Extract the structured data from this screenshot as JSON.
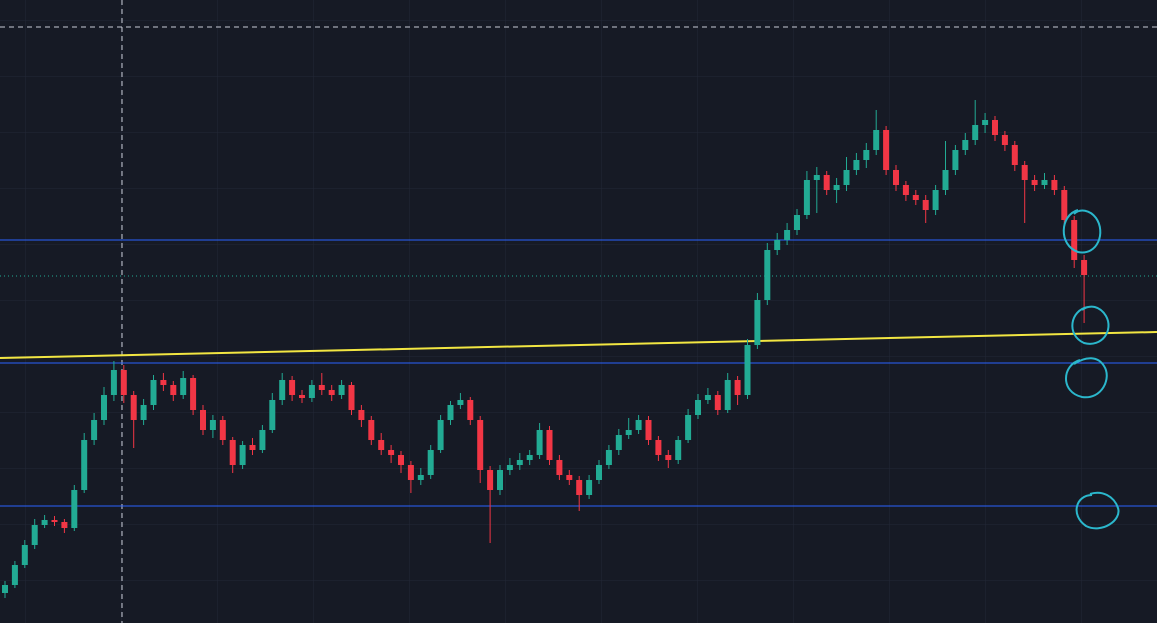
{
  "chart_data": {
    "type": "candlestick",
    "up_color": "#22ab94",
    "down_color": "#f23645",
    "ylim": [
      0,
      623
    ],
    "open": [
      30,
      38,
      58,
      78,
      98,
      103,
      101,
      95,
      133,
      183,
      203,
      228,
      253,
      228,
      203,
      218,
      243,
      238,
      228,
      245,
      213,
      193,
      203,
      183,
      158,
      178,
      173,
      193,
      223,
      243,
      228,
      225,
      238,
      233,
      228,
      238,
      213,
      203,
      183,
      173,
      168,
      158,
      143,
      148,
      173,
      203,
      218,
      223,
      203,
      153,
      133,
      153,
      158,
      163,
      168,
      193,
      163,
      148,
      143,
      128,
      143,
      158,
      173,
      188,
      193,
      203,
      183,
      168,
      163,
      183,
      208,
      223,
      228,
      213,
      243,
      228,
      278,
      323,
      373,
      383,
      393,
      408,
      443,
      448,
      433,
      438,
      453,
      463,
      473,
      493,
      453,
      438,
      428,
      423,
      413,
      433,
      453,
      473,
      483,
      498,
      503,
      488,
      478,
      458,
      443,
      438,
      443,
      433,
      403,
      363
    ],
    "high": [
      42,
      62,
      83,
      104,
      108,
      107,
      104,
      138,
      190,
      210,
      236,
      262,
      258,
      232,
      224,
      248,
      250,
      242,
      252,
      248,
      218,
      208,
      207,
      186,
      182,
      185,
      198,
      230,
      250,
      247,
      233,
      243,
      250,
      238,
      243,
      241,
      218,
      207,
      190,
      178,
      172,
      162,
      155,
      178,
      208,
      222,
      230,
      226,
      207,
      157,
      158,
      165,
      170,
      173,
      200,
      197,
      168,
      153,
      147,
      148,
      163,
      178,
      194,
      205,
      208,
      207,
      187,
      173,
      187,
      214,
      229,
      235,
      232,
      250,
      247,
      284,
      330,
      380,
      390,
      400,
      414,
      452,
      456,
      452,
      445,
      466,
      470,
      480,
      513,
      497,
      458,
      442,
      433,
      428,
      438,
      482,
      478,
      490,
      523,
      510,
      507,
      492,
      482,
      462,
      448,
      450,
      448,
      437,
      407,
      368
    ],
    "low": [
      25,
      35,
      55,
      74,
      95,
      97,
      90,
      92,
      130,
      178,
      198,
      222,
      220,
      175,
      198,
      213,
      232,
      222,
      224,
      208,
      188,
      185,
      178,
      150,
      154,
      168,
      170,
      190,
      218,
      222,
      220,
      221,
      228,
      222,
      224,
      208,
      196,
      178,
      168,
      160,
      150,
      130,
      138,
      144,
      170,
      198,
      214,
      198,
      140,
      80,
      128,
      148,
      153,
      158,
      164,
      158,
      143,
      138,
      112,
      124,
      139,
      154,
      168,
      184,
      189,
      178,
      162,
      155,
      159,
      180,
      204,
      219,
      208,
      210,
      218,
      224,
      274,
      318,
      368,
      378,
      388,
      404,
      410,
      428,
      420,
      432,
      448,
      455,
      468,
      448,
      432,
      422,
      418,
      400,
      408,
      428,
      448,
      468,
      478,
      490,
      482,
      472,
      452,
      400,
      432,
      434,
      428,
      398,
      355,
      300
    ],
    "close": [
      38,
      58,
      78,
      98,
      103,
      101,
      95,
      133,
      183,
      203,
      228,
      253,
      228,
      203,
      218,
      243,
      238,
      228,
      245,
      213,
      193,
      203,
      183,
      158,
      178,
      173,
      193,
      223,
      243,
      228,
      225,
      238,
      233,
      228,
      238,
      213,
      203,
      183,
      173,
      168,
      158,
      143,
      148,
      173,
      203,
      218,
      223,
      203,
      153,
      133,
      153,
      158,
      163,
      168,
      193,
      163,
      148,
      143,
      128,
      143,
      158,
      173,
      188,
      193,
      203,
      183,
      168,
      163,
      183,
      208,
      223,
      228,
      213,
      243,
      228,
      278,
      323,
      373,
      383,
      393,
      408,
      443,
      448,
      433,
      438,
      453,
      463,
      473,
      493,
      453,
      438,
      428,
      423,
      413,
      433,
      453,
      473,
      483,
      498,
      503,
      488,
      478,
      458,
      443,
      438,
      443,
      433,
      403,
      363,
      348
    ],
    "levels": [
      {
        "value": 383,
        "color": "#2962ff"
      },
      {
        "value": 260,
        "color": "#2962ff"
      },
      {
        "value": 117,
        "color": "#2962ff"
      },
      {
        "value": 347,
        "color": "#22ab94",
        "style": "dotted"
      }
    ],
    "trendline": {
      "start": 265,
      "end": 291,
      "color": "#f2e642"
    }
  }
}
